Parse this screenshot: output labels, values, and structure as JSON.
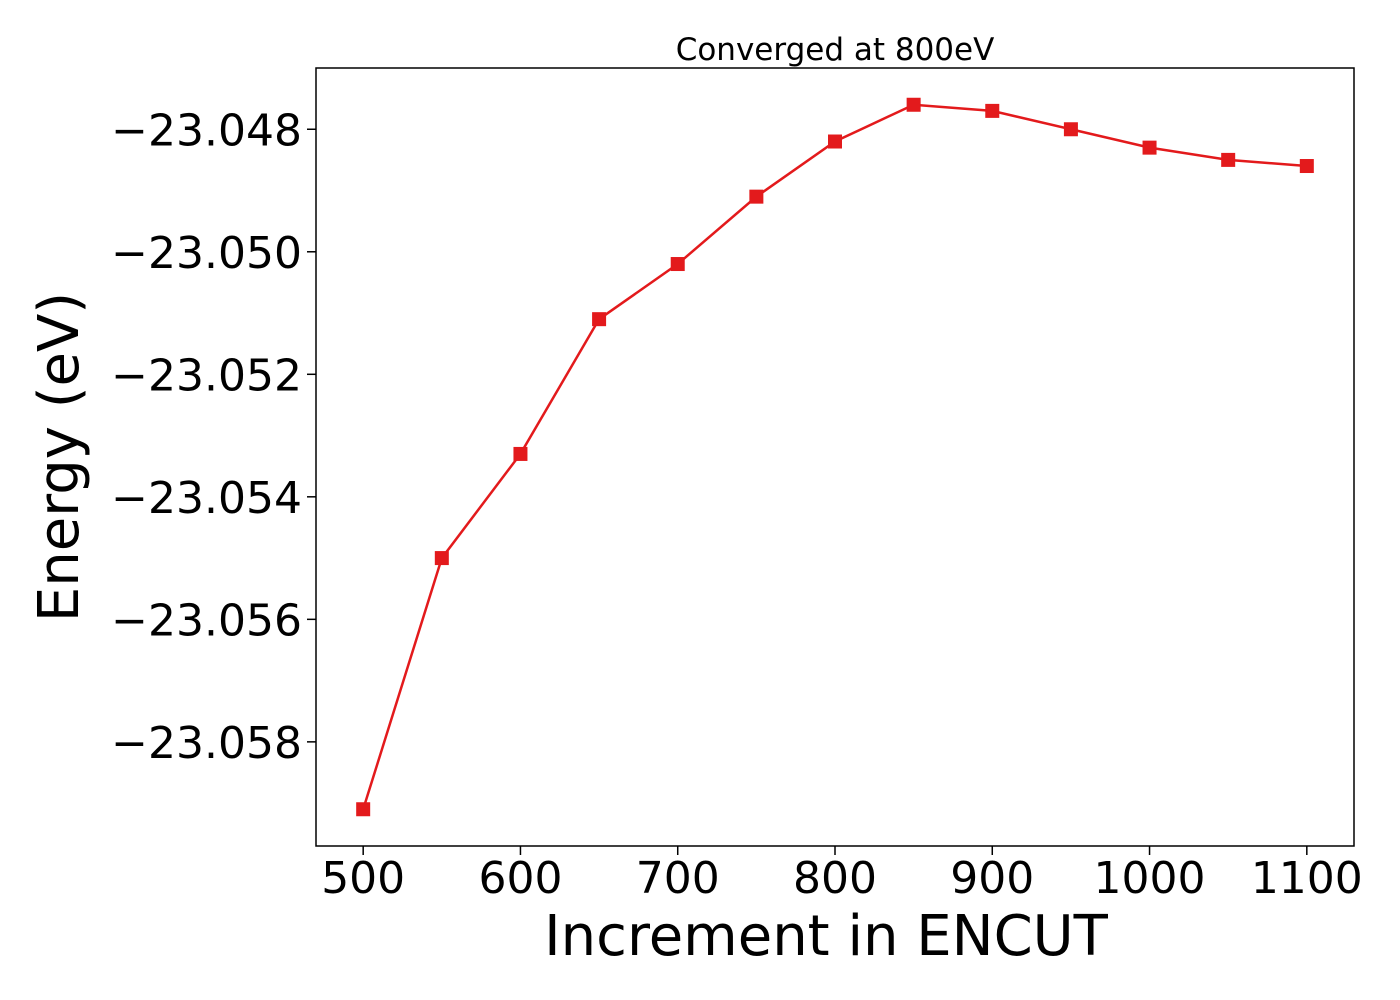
{
  "chart_data": {
    "type": "line",
    "title": "Converged at 800eV",
    "xlabel": "Increment in ENCUT",
    "ylabel": "Energy (eV)",
    "x": [
      500,
      550,
      600,
      650,
      700,
      750,
      800,
      850,
      900,
      950,
      1000,
      1050,
      1100
    ],
    "series": [
      {
        "color": "#e31a1c",
        "marker": "square",
        "values": [
          -23.0591,
          -23.055,
          -23.0533,
          -23.0511,
          -23.0502,
          -23.0491,
          -23.0482,
          -23.0476,
          -23.0477,
          -23.048,
          -23.0483,
          -23.0485,
          -23.0486
        ]
      }
    ],
    "xlim": [
      470,
      1130
    ],
    "ylim": [
      -23.0597,
      -23.047
    ],
    "xticks": [
      500,
      600,
      700,
      800,
      900,
      1000,
      1100
    ],
    "xtick_labels": [
      "500",
      "600",
      "700",
      "800",
      "900",
      "1000",
      "1100"
    ],
    "yticks": [
      -23.058,
      -23.056,
      -23.054,
      -23.052,
      -23.05,
      -23.048
    ],
    "ytick_labels": [
      "−23.058",
      "−23.056",
      "−23.054",
      "−23.052",
      "−23.050",
      "−23.048"
    ],
    "grid": false,
    "legend": false
  }
}
